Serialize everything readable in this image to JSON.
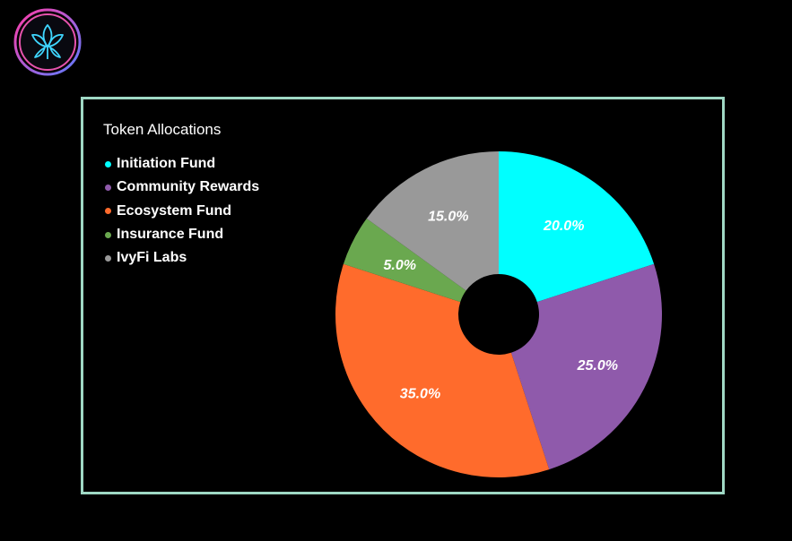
{
  "logo": {
    "icon": "ivy-leaf-icon",
    "ring_colors": [
      "#ff3ca8",
      "#5b7cff"
    ],
    "leaf_color": "#3fd6ff"
  },
  "frame_color": "#9fd8c4",
  "chart_data": {
    "type": "pie",
    "donut": true,
    "title": "Token Allocations",
    "legend_position": "top-left",
    "categories": [
      "Initiation Fund",
      "Community Rewards",
      "Ecosystem Fund",
      "Insurance Fund",
      "IvyFi Labs"
    ],
    "values": [
      20.0,
      25.0,
      35.0,
      5.0,
      15.0
    ],
    "labels": [
      "20.0%",
      "25.0%",
      "35.0%",
      "5.0%",
      "15.0%"
    ],
    "colors": [
      "#00ffff",
      "#8f5aab",
      "#ff6b2c",
      "#6aa84f",
      "#999999"
    ]
  }
}
